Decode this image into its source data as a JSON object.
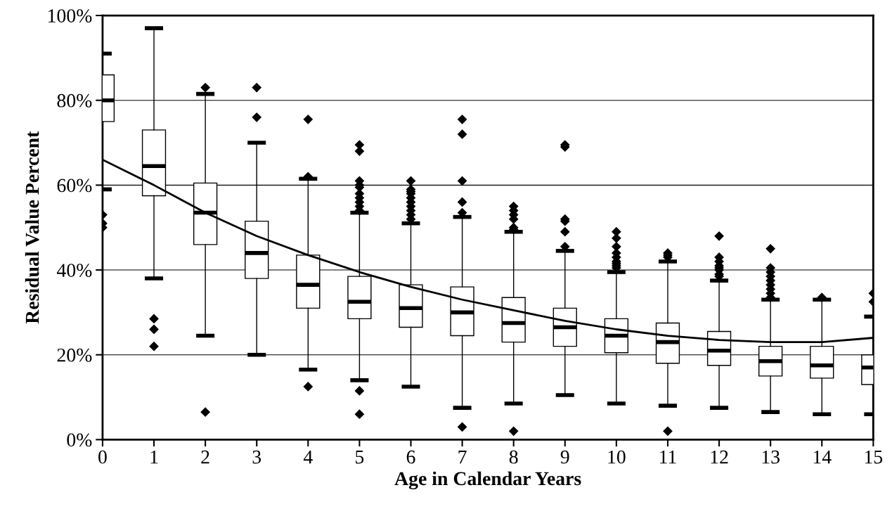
{
  "chart_data": {
    "type": "box",
    "xlabel": "Age in Calendar Years",
    "ylabel": "Residual Value Percent",
    "xlim": [
      0,
      15
    ],
    "xticks": [
      0,
      1,
      2,
      3,
      4,
      5,
      6,
      7,
      8,
      9,
      10,
      11,
      12,
      13,
      14,
      15
    ],
    "ylim": [
      0,
      100
    ],
    "yticks": [
      {
        "value": 0,
        "label": "0%"
      },
      {
        "value": 20,
        "label": "20%"
      },
      {
        "value": 40,
        "label": "40%"
      },
      {
        "value": 60,
        "label": "60%"
      },
      {
        "value": 80,
        "label": "80%"
      },
      {
        "value": 100,
        "label": "100%"
      }
    ],
    "grid": "y",
    "legend": false,
    "series": [
      {
        "color": "#000000",
        "marker": "diamond",
        "x": [
          0,
          1,
          2,
          3,
          4,
          5,
          6,
          7,
          8,
          9,
          10,
          11,
          12,
          13,
          14,
          15
        ],
        "boxes": [
          {
            "low": 59,
            "q1": 75,
            "median": 80,
            "q3": 86,
            "high": 91,
            "outliers": [
              53,
              51,
              50
            ]
          },
          {
            "low": 38,
            "q1": 57.5,
            "median": 64.5,
            "q3": 73,
            "high": 97,
            "outliers": [
              28.5,
              26,
              22
            ]
          },
          {
            "low": 24.5,
            "q1": 46,
            "median": 53.5,
            "q3": 60.5,
            "high": 81.5,
            "outliers": [
              83,
              6.5
            ]
          },
          {
            "low": 20,
            "q1": 38,
            "median": 44,
            "q3": 51.5,
            "high": 70,
            "outliers": [
              83,
              76
            ]
          },
          {
            "low": 16.5,
            "q1": 31,
            "median": 36.5,
            "q3": 43.5,
            "high": 61.5,
            "outliers": [
              75.5,
              62,
              12.5
            ]
          },
          {
            "low": 14,
            "q1": 28.5,
            "median": 32.5,
            "q3": 38.5,
            "high": 53.5,
            "outliers": [
              69.5,
              68,
              61,
              60,
              59.5,
              58,
              57,
              56,
              55,
              54,
              11.5,
              6
            ]
          },
          {
            "low": 12.5,
            "q1": 26.5,
            "median": 31,
            "q3": 36.5,
            "high": 51,
            "outliers": [
              61,
              59,
              58.5,
              58,
              57,
              56,
              55,
              54,
              53,
              52
            ]
          },
          {
            "low": 7.5,
            "q1": 24.5,
            "median": 30,
            "q3": 36,
            "high": 52.5,
            "outliers": [
              75.5,
              72,
              61,
              56,
              53.5,
              3
            ]
          },
          {
            "low": 8.5,
            "q1": 23,
            "median": 27.5,
            "q3": 33.5,
            "high": 49,
            "outliers": [
              55,
              54,
              53,
              52,
              50,
              49.5,
              2
            ]
          },
          {
            "low": 10.5,
            "q1": 22,
            "median": 26.5,
            "q3": 31,
            "high": 44.5,
            "outliers": [
              69.5,
              69,
              52,
              51.5,
              49,
              45.5
            ]
          },
          {
            "low": 8.5,
            "q1": 20.5,
            "median": 24.5,
            "q3": 28.5,
            "high": 39.5,
            "outliers": [
              49,
              47.5,
              45.5,
              44,
              43,
              42,
              41.5,
              41,
              40.5
            ]
          },
          {
            "low": 8,
            "q1": 18,
            "median": 23,
            "q3": 27.5,
            "high": 42,
            "outliers": [
              44,
              43.5,
              43,
              2
            ]
          },
          {
            "low": 7.5,
            "q1": 17.5,
            "median": 21,
            "q3": 25.5,
            "high": 37.5,
            "outliers": [
              48,
              43,
              42,
              41,
              40.5,
              40,
              39,
              38.5
            ]
          },
          {
            "low": 6.5,
            "q1": 15,
            "median": 18.5,
            "q3": 22,
            "high": 33,
            "outliers": [
              45,
              40.5,
              39.5,
              38.5,
              37.5,
              36.5,
              35.5,
              34.5,
              33.5
            ]
          },
          {
            "low": 6,
            "q1": 14.5,
            "median": 17.5,
            "q3": 22,
            "high": 33,
            "outliers": [
              33.5
            ]
          },
          {
            "low": 6,
            "q1": 13,
            "median": 17,
            "q3": 20,
            "high": 29,
            "outliers": [
              34.5,
              32.5
            ]
          }
        ]
      },
      {
        "type": "line",
        "color": "#000000",
        "line_style": "solid",
        "x": [
          0,
          1,
          2,
          3,
          4,
          5,
          6,
          7,
          8,
          9,
          10,
          11,
          12,
          13,
          14,
          15
        ],
        "values": [
          66,
          60,
          53.5,
          48,
          43.5,
          39.5,
          36,
          33,
          30.5,
          28,
          26,
          24.5,
          23.5,
          23,
          23,
          24
        ]
      }
    ]
  }
}
